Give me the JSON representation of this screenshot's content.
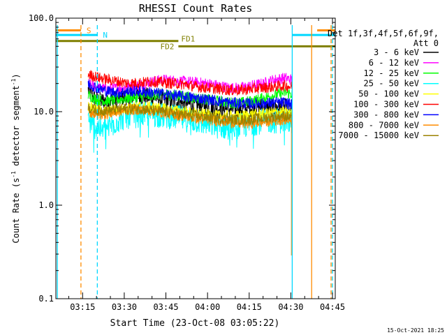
{
  "chart_data": {
    "type": "line",
    "title": "RHESSI Count Rates",
    "xlabel": "Start Time (23-Oct-08 03:05:22)",
    "ylabel_main": "Count Rate (s",
    "ylabel_sup1": "-1",
    "ylabel_mid": " detector segment",
    "ylabel_sup2": "-1",
    "ylabel_end": ")",
    "yscale": "log",
    "ylim": [
      0.1,
      100
    ],
    "xlim_minutes": [
      5.37,
      106.0
    ],
    "x_ticks": [
      {
        "label": "03:15",
        "minute": 15
      },
      {
        "label": "03:30",
        "minute": 30
      },
      {
        "label": "03:45",
        "minute": 45
      },
      {
        "label": "04:00",
        "minute": 60
      },
      {
        "label": "04:15",
        "minute": 75
      },
      {
        "label": "04:30",
        "minute": 90
      },
      {
        "label": "04:45",
        "minute": 105
      }
    ],
    "y_ticks": [
      {
        "label": "100.0",
        "value": 100
      },
      {
        "label": "10.0",
        "value": 10
      },
      {
        "label": "1.0",
        "value": 1
      },
      {
        "label": "0.1",
        "value": 0.1
      }
    ],
    "legend_header": [
      "Det 1f,3f,4f,5f,6f,9f,",
      "Att 0"
    ],
    "legend_position": "right",
    "series": [
      {
        "name": "3 - 6 keV",
        "color": "#000000",
        "start": 17,
        "end": 90.5,
        "values": [
          [
            17,
            17
          ],
          [
            19,
            14
          ],
          [
            21,
            13
          ],
          [
            24,
            13
          ],
          [
            27,
            13.5
          ],
          [
            30,
            14.5
          ],
          [
            34,
            15
          ],
          [
            38,
            14.5
          ],
          [
            42,
            14
          ],
          [
            46,
            13
          ],
          [
            50,
            12.5
          ],
          [
            54,
            12
          ],
          [
            58,
            11.5
          ],
          [
            62,
            11
          ],
          [
            66,
            10.8
          ],
          [
            70,
            10.5
          ],
          [
            74,
            10.8
          ],
          [
            78,
            11.5
          ],
          [
            82,
            11
          ],
          [
            86,
            11
          ],
          [
            90,
            11
          ]
        ]
      },
      {
        "name": "6 - 12 keV",
        "color": "#ff00ff",
        "start": 17,
        "end": 90.5,
        "values": [
          [
            17,
            20
          ],
          [
            20,
            18
          ],
          [
            24,
            17.5
          ],
          [
            28,
            18
          ],
          [
            32,
            18.5
          ],
          [
            36,
            19.5
          ],
          [
            40,
            21
          ],
          [
            44,
            22
          ],
          [
            48,
            21.5
          ],
          [
            52,
            21
          ],
          [
            56,
            20.5
          ],
          [
            60,
            20
          ],
          [
            64,
            19
          ],
          [
            68,
            18
          ],
          [
            72,
            18
          ],
          [
            76,
            19
          ],
          [
            80,
            20
          ],
          [
            84,
            22
          ],
          [
            88,
            23
          ],
          [
            90,
            22
          ]
        ]
      },
      {
        "name": "12 - 25 keV",
        "color": "#00ff00",
        "start": 17,
        "end": 90.5,
        "values": [
          [
            17,
            15
          ],
          [
            20,
            13.5
          ],
          [
            24,
            13
          ],
          [
            28,
            13.5
          ],
          [
            32,
            14
          ],
          [
            36,
            14.5
          ],
          [
            40,
            15
          ],
          [
            44,
            15.5
          ],
          [
            48,
            15
          ],
          [
            52,
            14.5
          ],
          [
            56,
            14
          ],
          [
            60,
            13.5
          ],
          [
            64,
            13
          ],
          [
            68,
            12.5
          ],
          [
            72,
            12.5
          ],
          [
            76,
            13
          ],
          [
            80,
            14
          ],
          [
            84,
            15
          ],
          [
            88,
            16
          ],
          [
            90,
            15.5
          ]
        ]
      },
      {
        "name": "25 - 50 keV",
        "color": "#00ffff",
        "start": 17,
        "end": 90.5,
        "values": [
          [
            17,
            8
          ],
          [
            19,
            7
          ],
          [
            21,
            6.8
          ],
          [
            23,
            6.5
          ],
          [
            26,
            7.5
          ],
          [
            29,
            8.5
          ],
          [
            32,
            9
          ],
          [
            36,
            9.3
          ],
          [
            40,
            9.5
          ],
          [
            44,
            9
          ],
          [
            48,
            8.8
          ],
          [
            52,
            8.3
          ],
          [
            56,
            8
          ],
          [
            60,
            7.5
          ],
          [
            64,
            7
          ],
          [
            68,
            6.8
          ],
          [
            72,
            7
          ],
          [
            76,
            7.5
          ],
          [
            80,
            8
          ],
          [
            84,
            8
          ],
          [
            88,
            8
          ],
          [
            90,
            7.8
          ]
        ]
      },
      {
        "name": "50 - 100 keV",
        "color": "#ffff00",
        "start": 17,
        "end": 90.5,
        "values": [
          [
            17,
            11.5
          ],
          [
            20,
            10.5
          ],
          [
            24,
            10
          ],
          [
            28,
            10.5
          ],
          [
            32,
            11
          ],
          [
            36,
            11.3
          ],
          [
            40,
            11.2
          ],
          [
            44,
            10.8
          ],
          [
            48,
            10.3
          ],
          [
            52,
            10
          ],
          [
            56,
            9.6
          ],
          [
            60,
            9.3
          ],
          [
            64,
            9
          ],
          [
            68,
            9
          ],
          [
            72,
            9
          ],
          [
            76,
            9.3
          ],
          [
            80,
            9.5
          ],
          [
            84,
            9.8
          ],
          [
            88,
            10
          ],
          [
            90,
            9.5
          ]
        ]
      },
      {
        "name": "100 - 300 keV",
        "color": "#ff0000",
        "start": 17,
        "end": 90.5,
        "values": [
          [
            17,
            25
          ],
          [
            19,
            24
          ],
          [
            21,
            23
          ],
          [
            24,
            22
          ],
          [
            28,
            21
          ],
          [
            32,
            20
          ],
          [
            36,
            20.5
          ],
          [
            40,
            21
          ],
          [
            44,
            20.5
          ],
          [
            48,
            20
          ],
          [
            52,
            19.5
          ],
          [
            56,
            18.5
          ],
          [
            60,
            18
          ],
          [
            64,
            17.5
          ],
          [
            68,
            17
          ],
          [
            72,
            17
          ],
          [
            76,
            17.5
          ],
          [
            80,
            18
          ],
          [
            84,
            18.5
          ],
          [
            88,
            19
          ],
          [
            90,
            18.5
          ]
        ]
      },
      {
        "name": "300 - 800 keV",
        "color": "#0000ff",
        "start": 17,
        "end": 90.5,
        "values": [
          [
            17,
            20
          ],
          [
            20,
            18
          ],
          [
            24,
            16.5
          ],
          [
            28,
            16
          ],
          [
            32,
            16.5
          ],
          [
            36,
            16.5
          ],
          [
            40,
            16
          ],
          [
            44,
            15.5
          ],
          [
            48,
            15
          ],
          [
            52,
            14.5
          ],
          [
            56,
            14
          ],
          [
            60,
            13.5
          ],
          [
            64,
            13
          ],
          [
            68,
            12.5
          ],
          [
            72,
            12.3
          ],
          [
            76,
            12.2
          ],
          [
            80,
            12.3
          ],
          [
            84,
            12.5
          ],
          [
            88,
            12.5
          ],
          [
            90,
            12
          ]
        ]
      },
      {
        "name": "800 - 7000 keV",
        "color": "#ff8c00",
        "start": 17,
        "end": 90.5,
        "values": [
          [
            17,
            10
          ],
          [
            20,
            9.3
          ],
          [
            24,
            9.5
          ],
          [
            28,
            10
          ],
          [
            32,
            10.5
          ],
          [
            36,
            10.5
          ],
          [
            40,
            10.2
          ],
          [
            44,
            9.8
          ],
          [
            48,
            9.3
          ],
          [
            52,
            9
          ],
          [
            56,
            8.5
          ],
          [
            60,
            8.2
          ],
          [
            64,
            8
          ],
          [
            68,
            7.7
          ],
          [
            72,
            7.5
          ],
          [
            76,
            7.5
          ],
          [
            80,
            7.8
          ],
          [
            84,
            8
          ],
          [
            88,
            8.3
          ],
          [
            90,
            8.2
          ]
        ]
      },
      {
        "name": "7000 - 15000 keV",
        "color": "#9b8200",
        "start": 17,
        "end": 90.5,
        "values": [
          [
            17,
            11
          ],
          [
            20,
            10.3
          ],
          [
            24,
            10.3
          ],
          [
            28,
            10.6
          ],
          [
            32,
            10.8
          ],
          [
            36,
            10.7
          ],
          [
            40,
            10.3
          ],
          [
            44,
            10
          ],
          [
            48,
            9.6
          ],
          [
            52,
            9.2
          ],
          [
            56,
            9
          ],
          [
            60,
            8.7
          ],
          [
            64,
            8.5
          ],
          [
            68,
            8.3
          ],
          [
            72,
            8.2
          ],
          [
            76,
            8.3
          ],
          [
            80,
            8.5
          ],
          [
            84,
            8.8
          ],
          [
            88,
            9
          ],
          [
            90,
            8.8
          ]
        ]
      }
    ],
    "drop_line": {
      "minute": 90.2,
      "value": 0.29,
      "color": "#ff8c00"
    },
    "flags": [
      {
        "label": "S",
        "color": "#ff8c00",
        "label_side": "right",
        "segments": [
          {
            "x0": 5.37,
            "x1": 14.4,
            "y": 74
          },
          {
            "x0": 99.5,
            "x1": 106.0,
            "y": 74
          }
        ],
        "verticals": [
          {
            "minute": 14.4,
            "from": 74
          },
          {
            "minute": 99.5,
            "from": 74
          }
        ]
      },
      {
        "label": "N",
        "color": "#00d8ff",
        "label_side": "right",
        "segments": [
          {
            "x0": 5.37,
            "x1": 20.3,
            "y": 66
          },
          {
            "x0": 90.5,
            "x1": 106.0,
            "y": 66
          }
        ],
        "verticals": [
          {
            "minute": 20.3,
            "from": 66
          },
          {
            "minute": 104.5,
            "from": 66
          }
        ]
      },
      {
        "label": "FD1",
        "color": "#7f7f00",
        "label_side": "left",
        "segments": [
          {
            "x0": 5.37,
            "x1": 49.5,
            "y": 57
          }
        ]
      },
      {
        "label": "FD2",
        "color": "#7f7f00",
        "label_side": "leftbelow",
        "segments": [
          {
            "x0": 49.5,
            "x1": 106.0,
            "y": 50
          }
        ]
      }
    ],
    "vertical_lines": [
      {
        "minute": 5.9,
        "color": "#00d8ff",
        "style": "solid"
      },
      {
        "minute": 90.5,
        "color": "#00d8ff",
        "style": "solid"
      },
      {
        "minute": 97.5,
        "color": "#ff8c00",
        "style": "solid"
      },
      {
        "minute": 14.4,
        "color": "#ff8c00",
        "style": "dashed"
      },
      {
        "minute": 20.3,
        "color": "#00d8ff",
        "style": "dashed"
      },
      {
        "minute": 104.5,
        "color": "#ff8c00",
        "style": "dashed"
      },
      {
        "minute": 105.0,
        "color": "#00d8ff",
        "style": "dashed"
      }
    ],
    "footer_timestamp": "15-Oct-2021 18:25"
  }
}
